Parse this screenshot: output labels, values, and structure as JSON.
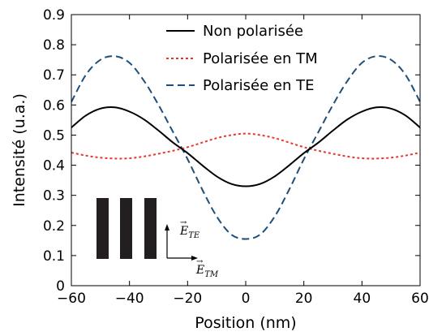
{
  "chart_data": {
    "type": "line",
    "xlabel": "Position (nm)",
    "ylabel": "Intensité (u.a.)",
    "xlim": [
      -60,
      60
    ],
    "ylim": [
      0,
      0.9
    ],
    "xticks": [
      "−60",
      "−40",
      "−20",
      "0",
      "20",
      "40",
      "60"
    ],
    "yticks": [
      "0",
      "0.1",
      "0.2",
      "0.3",
      "0.4",
      "0.5",
      "0.6",
      "0.7",
      "0.8",
      "0.9"
    ],
    "grid": false,
    "legend_position": "top-right",
    "x": [
      -60,
      -55,
      -50,
      -45,
      -40,
      -35,
      -30,
      -25,
      -20,
      -15,
      -10,
      -5,
      0,
      5,
      10,
      15,
      20,
      25,
      30,
      35,
      40,
      45,
      50,
      55,
      60
    ],
    "series": [
      {
        "name": "Non polarisée",
        "color": "#000000",
        "dash": "solid",
        "values": [
          0.525,
          0.565,
          0.588,
          0.592,
          0.578,
          0.552,
          0.515,
          0.475,
          0.44,
          0.4,
          0.363,
          0.338,
          0.33,
          0.338,
          0.363,
          0.4,
          0.44,
          0.475,
          0.515,
          0.552,
          0.578,
          0.592,
          0.588,
          0.565,
          0.525
        ]
      },
      {
        "name": "Polarisée en TM",
        "color": "#e8362b",
        "dash": "dotted",
        "values": [
          0.442,
          0.432,
          0.425,
          0.422,
          0.423,
          0.429,
          0.438,
          0.448,
          0.46,
          0.475,
          0.49,
          0.5,
          0.505,
          0.5,
          0.49,
          0.475,
          0.46,
          0.448,
          0.438,
          0.429,
          0.423,
          0.422,
          0.425,
          0.432,
          0.442
        ]
      },
      {
        "name": "Polarisée en TE",
        "color": "#1f4e79",
        "dash": "dashed",
        "values": [
          0.61,
          0.7,
          0.75,
          0.762,
          0.74,
          0.68,
          0.6,
          0.51,
          0.42,
          0.32,
          0.23,
          0.17,
          0.155,
          0.17,
          0.23,
          0.32,
          0.42,
          0.51,
          0.6,
          0.68,
          0.74,
          0.762,
          0.75,
          0.7,
          0.61
        ]
      }
    ],
    "inset": {
      "field_te": "E",
      "field_te_sub": "TE",
      "field_tm": "E",
      "field_tm_sub": "TM"
    }
  }
}
